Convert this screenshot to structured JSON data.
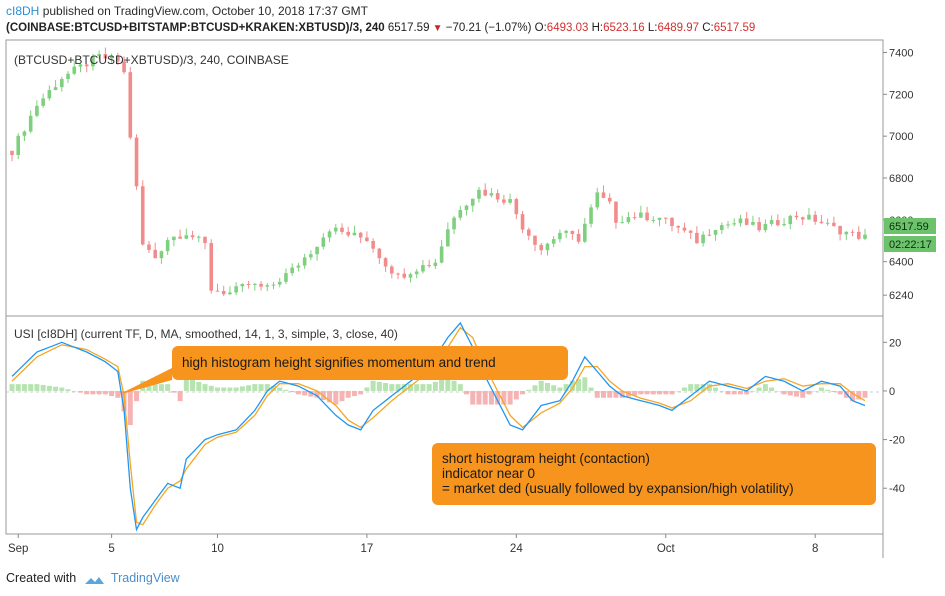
{
  "header": {
    "user": "cI8DH",
    "published_text": "published on TradingView.com, October 10, 2018 17:37 GMT",
    "symbol": "(COINBASE:BTCUSD+BITSTAMP:BTCUSD+KRAKEN:XBTUSD)/3, 240",
    "last": "6517.59",
    "change": "−70.21 (−1.07%)",
    "o_label": "O:",
    "o": "6493.03",
    "h_label": "H:",
    "h": "6523.16",
    "l_label": "L:",
    "l": "6489.97",
    "c_label": "C:",
    "c": "6517.59"
  },
  "price_pane": {
    "legend": "(BTCUSD+BTCUSD+XBTUSD)/3, 240, COINBASE",
    "last_price_label": "6517.59",
    "countdown_label": "02:22:17"
  },
  "indicator_pane": {
    "legend": "USI [cI8DH] (current TF, D, MA, smoothed, 14, 1, 3, simple, 3, close, 40)"
  },
  "annotations": {
    "callout1": "high histogram height signifies momentum and trend",
    "callout2_line1": "short histogram height (contaction)",
    "callout2_line2": "indicator near 0",
    "callout2_line3": "= market ded (usually followed by expansion/high volatility)"
  },
  "footer": {
    "created_with": "Created with",
    "brand": "TradingView"
  },
  "colors": {
    "up": "#7ed07e",
    "down": "#f28b8b",
    "blue_line": "#2196f3",
    "orange_line": "#f5a623",
    "callout": "#f7941d",
    "last_price_bg": "#6cc36c"
  },
  "chart_data": [
    {
      "type": "candlestick",
      "ylim": [
        6150,
        7450
      ],
      "y_ticks": [
        6240,
        6400,
        6600,
        6800,
        7000,
        7200,
        7400
      ],
      "x_tick_labels": [
        "Sep",
        "5",
        "10",
        "17",
        "24",
        "Oct",
        "8"
      ],
      "close_path": [
        [
          0,
          6930
        ],
        [
          4,
          7150
        ],
        [
          8,
          7280
        ],
        [
          11,
          7330
        ],
        [
          14,
          7380
        ],
        [
          17,
          7360
        ],
        [
          18,
          7300
        ],
        [
          19,
          7000
        ],
        [
          20,
          6750
        ],
        [
          21,
          6480
        ],
        [
          23,
          6420
        ],
        [
          25,
          6510
        ],
        [
          28,
          6540
        ],
        [
          31,
          6480
        ],
        [
          32,
          6270
        ],
        [
          35,
          6250
        ],
        [
          38,
          6290
        ],
        [
          41,
          6270
        ],
        [
          45,
          6360
        ],
        [
          48,
          6450
        ],
        [
          51,
          6560
        ],
        [
          54,
          6530
        ],
        [
          57,
          6510
        ],
        [
          60,
          6390
        ],
        [
          62,
          6330
        ],
        [
          65,
          6370
        ],
        [
          68,
          6400
        ],
        [
          70,
          6560
        ],
        [
          72,
          6660
        ],
        [
          75,
          6740
        ],
        [
          78,
          6710
        ],
        [
          80,
          6690
        ],
        [
          82,
          6570
        ],
        [
          85,
          6460
        ],
        [
          88,
          6540
        ],
        [
          91,
          6510
        ],
        [
          94,
          6720
        ],
        [
          96,
          6670
        ],
        [
          97,
          6600
        ],
        [
          100,
          6620
        ],
        [
          104,
          6610
        ],
        [
          107,
          6560
        ],
        [
          110,
          6500
        ],
        [
          113,
          6570
        ],
        [
          117,
          6590
        ],
        [
          120,
          6560
        ],
        [
          123,
          6590
        ],
        [
          126,
          6620
        ],
        [
          129,
          6600
        ],
        [
          132,
          6560
        ],
        [
          135,
          6530
        ],
        [
          137,
          6517
        ]
      ]
    },
    {
      "type": "line",
      "ylim": [
        -58,
        30
      ],
      "y_ticks": [
        -40,
        -20,
        0,
        20
      ],
      "series": [
        {
          "color": "blue",
          "values": [
            [
              0,
              6
            ],
            [
              4,
              16
            ],
            [
              8,
              20
            ],
            [
              12,
              16
            ],
            [
              15,
              12
            ],
            [
              17,
              8
            ],
            [
              18,
              -8
            ],
            [
              19,
              -40
            ],
            [
              20,
              -57
            ],
            [
              21,
              -52
            ],
            [
              23,
              -45
            ],
            [
              25,
              -38
            ],
            [
              27,
              -40
            ],
            [
              28,
              -28
            ],
            [
              31,
              -20
            ],
            [
              33,
              -18
            ],
            [
              36,
              -16
            ],
            [
              39,
              -8
            ],
            [
              41,
              0
            ],
            [
              43,
              4
            ],
            [
              46,
              2
            ],
            [
              49,
              -2
            ],
            [
              52,
              -10
            ],
            [
              54,
              -14
            ],
            [
              56,
              -16
            ],
            [
              58,
              -8
            ],
            [
              61,
              -2
            ],
            [
              64,
              4
            ],
            [
              67,
              10
            ],
            [
              70,
              22
            ],
            [
              72,
              28
            ],
            [
              74,
              18
            ],
            [
              76,
              6
            ],
            [
              78,
              -4
            ],
            [
              80,
              -14
            ],
            [
              82,
              -16
            ],
            [
              85,
              -6
            ],
            [
              88,
              -4
            ],
            [
              90,
              4
            ],
            [
              92,
              14
            ],
            [
              94,
              8
            ],
            [
              96,
              2
            ],
            [
              98,
              -2
            ],
            [
              101,
              -4
            ],
            [
              104,
              -6
            ],
            [
              106,
              -8
            ],
            [
              109,
              -2
            ],
            [
              112,
              4
            ],
            [
              115,
              2
            ],
            [
              118,
              0
            ],
            [
              121,
              6
            ],
            [
              124,
              4
            ],
            [
              127,
              0
            ],
            [
              130,
              4
            ],
            [
              133,
              2
            ],
            [
              135,
              -4
            ],
            [
              137,
              -6
            ]
          ]
        },
        {
          "color": "orange",
          "values": [
            [
              0,
              4
            ],
            [
              4,
              14
            ],
            [
              8,
              19
            ],
            [
              12,
              17
            ],
            [
              15,
              13
            ],
            [
              17,
              10
            ],
            [
              18,
              -2
            ],
            [
              19,
              -30
            ],
            [
              20,
              -54
            ],
            [
              21,
              -55
            ],
            [
              23,
              -47
            ],
            [
              25,
              -40
            ],
            [
              27,
              -37
            ],
            [
              28,
              -32
            ],
            [
              31,
              -22
            ],
            [
              33,
              -19
            ],
            [
              36,
              -17
            ],
            [
              39,
              -10
            ],
            [
              41,
              -2
            ],
            [
              43,
              3
            ],
            [
              46,
              3
            ],
            [
              49,
              0
            ],
            [
              52,
              -6
            ],
            [
              54,
              -12
            ],
            [
              56,
              -15
            ],
            [
              58,
              -11
            ],
            [
              61,
              -4
            ],
            [
              64,
              2
            ],
            [
              67,
              8
            ],
            [
              70,
              18
            ],
            [
              72,
              26
            ],
            [
              74,
              22
            ],
            [
              76,
              10
            ],
            [
              78,
              0
            ],
            [
              80,
              -10
            ],
            [
              82,
              -15
            ],
            [
              85,
              -9
            ],
            [
              88,
              -5
            ],
            [
              90,
              1
            ],
            [
              92,
              10
            ],
            [
              94,
              10
            ],
            [
              96,
              4
            ],
            [
              98,
              0
            ],
            [
              101,
              -3
            ],
            [
              104,
              -5
            ],
            [
              106,
              -7
            ],
            [
              109,
              -4
            ],
            [
              112,
              2
            ],
            [
              115,
              3
            ],
            [
              118,
              1
            ],
            [
              121,
              4
            ],
            [
              124,
              5
            ],
            [
              127,
              2
            ],
            [
              130,
              3
            ],
            [
              133,
              3
            ],
            [
              135,
              -1
            ],
            [
              137,
              -4
            ]
          ]
        }
      ]
    }
  ]
}
